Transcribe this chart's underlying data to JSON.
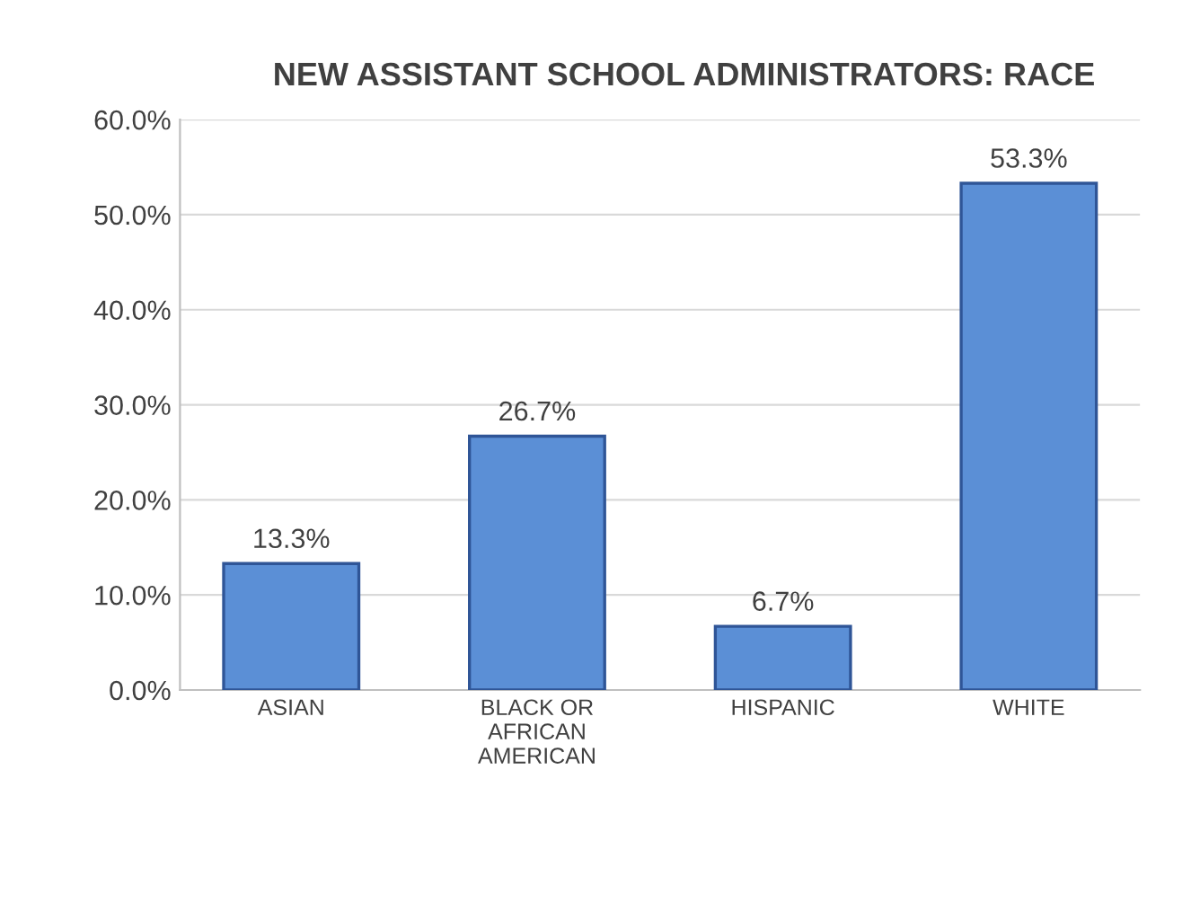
{
  "chart_data": {
    "type": "bar",
    "title": "NEW ASSISTANT SCHOOL ADMINISTRATORS: RACE",
    "categories": [
      "ASIAN",
      "BLACK OR\nAFRICAN\nAMERICAN",
      "HISPANIC",
      "WHITE"
    ],
    "values": [
      13.3,
      26.7,
      6.7,
      53.3
    ],
    "value_labels": [
      "13.3%",
      "26.7%",
      "6.7%",
      "53.3%"
    ],
    "color": "#5b8fd6",
    "ylim": [
      0,
      60
    ],
    "yticks": [
      {
        "value": 0,
        "label": "0.0%"
      },
      {
        "value": 10,
        "label": "10.0%"
      },
      {
        "value": 20,
        "label": "20.0%"
      },
      {
        "value": 30,
        "label": "30.0%"
      },
      {
        "value": 40,
        "label": "40.0%"
      },
      {
        "value": 50,
        "label": "50.0%"
      },
      {
        "value": 60,
        "label": "60.0%"
      }
    ],
    "grid": "y"
  }
}
